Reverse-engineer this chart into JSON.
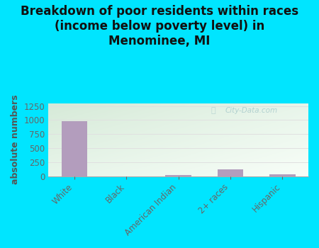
{
  "title": "Breakdown of poor residents within races\n(income below poverty level) in\nMenominee, MI",
  "categories": [
    "White",
    "Black",
    "American Indian",
    "2+ races",
    "Hispanic"
  ],
  "values": [
    975,
    0,
    15,
    120,
    35
  ],
  "bar_color": "#b39dbd",
  "ylabel": "absolute numbers",
  "ylim": [
    0,
    1300
  ],
  "yticks": [
    0,
    250,
    500,
    750,
    1000,
    1250
  ],
  "background_outer": "#00e5ff",
  "grad_top_left": "#d6ead8",
  "grad_bottom_right": "#f5fbf5",
  "grid_color": "#e0e0e0",
  "watermark": "City-Data.com",
  "watermark_color": "#aacccc",
  "title_fontsize": 12,
  "ylabel_fontsize": 9,
  "ylabel_color": "#555555",
  "tick_color": "#666666",
  "title_color": "#111111"
}
